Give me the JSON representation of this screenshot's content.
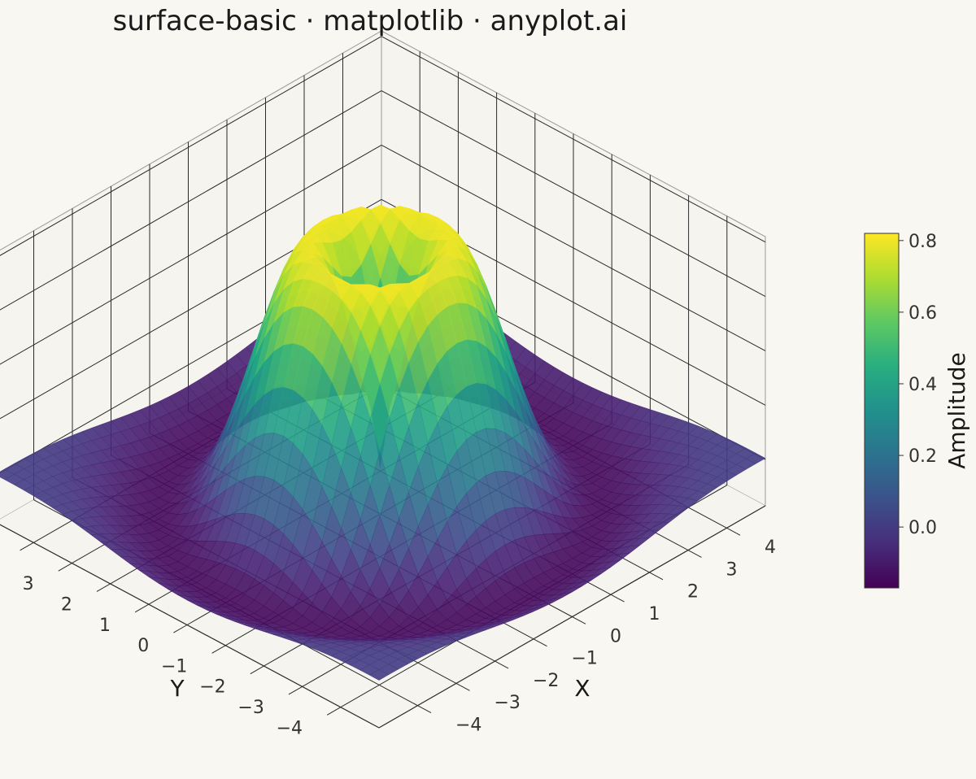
{
  "title": "surface-basic · matplotlib · anyplot.ai",
  "chart_data": {
    "type": "surface",
    "title": "surface-basic · matplotlib · anyplot.ai",
    "xlabel": "X",
    "ylabel": "Y",
    "zlabel": "",
    "function": "z = sin(sqrt(x^2 + y^2)) * exp(-0.1 * (x^2 + y^2))",
    "x_range": [
      -5,
      5
    ],
    "y_range": [
      -5,
      5
    ],
    "zlim": [
      -0.17,
      0.82
    ],
    "x_ticks": [
      -4,
      -3,
      -2,
      -1,
      0,
      1,
      2,
      3,
      4
    ],
    "y_ticks": [
      -4,
      -3,
      -2,
      -1,
      0,
      1,
      2,
      3,
      4
    ],
    "z_ticks": [
      0.0,
      0.2,
      0.4,
      0.6,
      0.8
    ],
    "x_tick_labels": [
      "−4",
      "−3",
      "−2",
      "−1",
      "0",
      "1",
      "2",
      "3",
      "4"
    ],
    "y_tick_labels": [
      "−4",
      "−3",
      "−2",
      "−1",
      "0",
      "1",
      "2",
      "3",
      "4"
    ],
    "z_tick_labels": [
      "0.0",
      "0.2",
      "0.4",
      "0.6",
      "0.8"
    ],
    "colormap": "viridis",
    "colorbar": {
      "label": "Amplitude",
      "range": [
        -0.17,
        0.82
      ],
      "ticks": [
        0.0,
        0.2,
        0.4,
        0.6,
        0.8
      ],
      "tick_labels": [
        "0.0",
        "0.2",
        "0.4",
        "0.6",
        "0.8"
      ]
    },
    "grid": true
  },
  "colors": {
    "background": "#f9f7f1",
    "grid": "#2a2a2a",
    "text": "#333333"
  }
}
